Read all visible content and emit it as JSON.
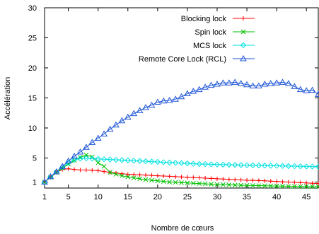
{
  "chart_data": {
    "type": "line",
    "xlabel": "Nombre de cœurs",
    "ylabel": "Accélération",
    "xlim": [
      1,
      47
    ],
    "ylim": [
      0,
      30
    ],
    "x_ticks": [
      1,
      5,
      10,
      15,
      20,
      25,
      30,
      35,
      40,
      45
    ],
    "y_ticks": [
      1,
      5,
      10,
      15,
      20,
      25,
      30
    ],
    "grid": false,
    "legend_position": "top-right",
    "x": [
      1,
      2,
      3,
      4,
      5,
      6,
      7,
      8,
      9,
      10,
      11,
      12,
      13,
      14,
      15,
      16,
      17,
      18,
      19,
      20,
      21,
      22,
      23,
      24,
      25,
      26,
      27,
      28,
      29,
      30,
      31,
      32,
      33,
      34,
      35,
      36,
      37,
      38,
      39,
      40,
      41,
      42,
      43,
      44,
      45,
      46,
      47
    ],
    "series": [
      {
        "name": "Blocking lock",
        "marker": "plus",
        "color": "#ff0000",
        "values": [
          1,
          1.8,
          2.6,
          3.1,
          3.2,
          3.1,
          3.0,
          3.0,
          2.95,
          2.9,
          2.75,
          2.6,
          2.5,
          2.4,
          2.3,
          2.25,
          2.2,
          2.15,
          2.1,
          2.05,
          2.0,
          1.95,
          1.9,
          1.85,
          1.8,
          1.75,
          1.7,
          1.65,
          1.6,
          1.55,
          1.5,
          1.45,
          1.4,
          1.35,
          1.3,
          1.28,
          1.25,
          1.2,
          1.15,
          1.1,
          1.05,
          1.0,
          0.95,
          0.9,
          0.85,
          0.8,
          0.75
        ]
      },
      {
        "name": "Spin lock",
        "marker": "x",
        "color": "#00c000",
        "values": [
          1,
          1.8,
          2.6,
          3.3,
          4.0,
          4.6,
          5.1,
          5.5,
          5.2,
          4.2,
          3.6,
          2.6,
          2.3,
          2.05,
          1.85,
          1.7,
          1.55,
          1.4,
          1.3,
          1.2,
          1.1,
          1.0,
          0.95,
          0.9,
          0.85,
          0.8,
          0.75,
          0.7,
          0.65,
          0.6,
          0.57,
          0.54,
          0.5,
          0.47,
          0.44,
          0.42,
          0.4,
          0.38,
          0.36,
          0.34,
          0.32,
          0.3,
          0.28,
          0.27,
          0.26,
          0.25,
          0.25
        ]
      },
      {
        "name": "MCS lock",
        "marker": "diamond",
        "color": "#00e0e0",
        "values": [
          1,
          1.9,
          2.7,
          3.5,
          4.2,
          4.7,
          4.9,
          4.95,
          4.9,
          4.85,
          4.8,
          4.75,
          4.7,
          4.65,
          4.6,
          4.55,
          4.5,
          4.45,
          4.4,
          4.35,
          4.3,
          4.25,
          4.2,
          4.15,
          4.1,
          4.05,
          4.0,
          3.98,
          3.95,
          3.92,
          3.9,
          3.87,
          3.85,
          3.82,
          3.8,
          3.78,
          3.76,
          3.74,
          3.72,
          3.7,
          3.68,
          3.66,
          3.64,
          3.62,
          3.6,
          3.58,
          3.56
        ]
      },
      {
        "name": "Remote Core Lock (RCL)",
        "marker": "triangle",
        "color": "#1f56d8",
        "values": [
          1,
          1.9,
          2.7,
          3.6,
          4.5,
          5.3,
          6.0,
          6.8,
          7.6,
          8.3,
          9.0,
          9.8,
          10.5,
          11.2,
          11.8,
          12.4,
          12.9,
          13.4,
          13.8,
          14.3,
          14.5,
          14.6,
          14.8,
          15.2,
          15.7,
          16.1,
          16.4,
          16.8,
          17.1,
          17.3,
          17.5,
          17.5,
          17.6,
          17.4,
          17.2,
          17.0,
          17.0,
          17.3,
          17.4,
          17.5,
          17.6,
          17.4,
          16.9,
          16.4,
          16.2,
          16.3,
          15.6
        ]
      }
    ]
  }
}
